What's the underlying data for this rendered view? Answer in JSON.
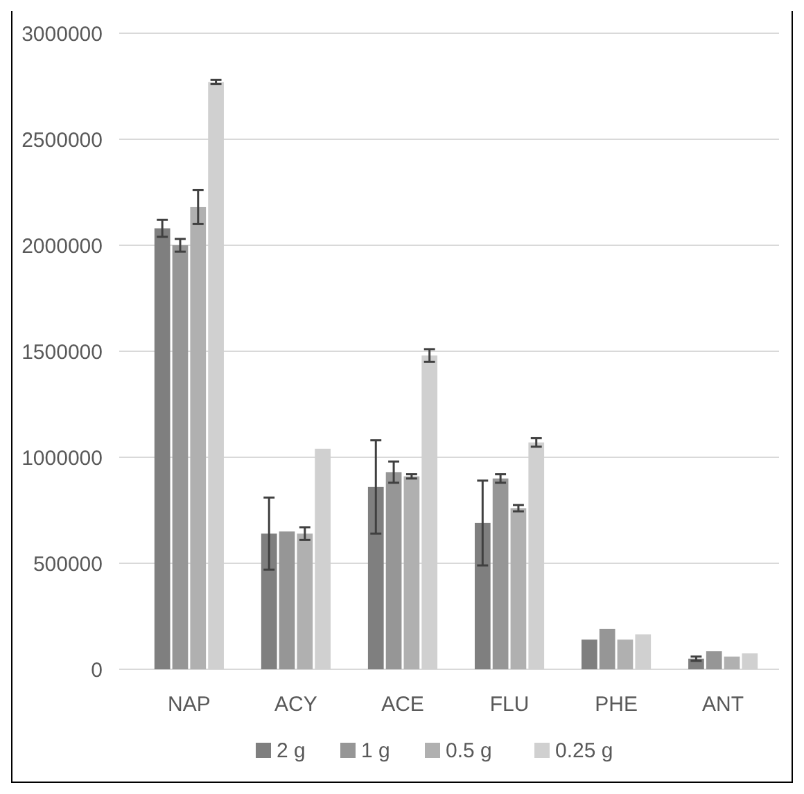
{
  "chart_data": {
    "type": "bar",
    "categories": [
      "NAP",
      "ACY",
      "ACE",
      "FLU",
      "PHE",
      "ANT"
    ],
    "series": [
      {
        "name": "2 g",
        "color": "#7f7f7f",
        "values": [
          2080000,
          640000,
          860000,
          690000,
          140000,
          50000
        ],
        "errors": [
          40000,
          170000,
          220000,
          200000,
          null,
          10000
        ]
      },
      {
        "name": "1 g",
        "color": "#969696",
        "values": [
          2000000,
          650000,
          930000,
          900000,
          190000,
          85000
        ],
        "errors": [
          30000,
          null,
          50000,
          20000,
          null,
          null
        ]
      },
      {
        "name": "0.5 g",
        "color": "#b0b0b0",
        "values": [
          2180000,
          640000,
          910000,
          760000,
          140000,
          60000
        ],
        "errors": [
          80000,
          30000,
          10000,
          15000,
          null,
          null
        ]
      },
      {
        "name": "0.25 g",
        "color": "#d0d0d0",
        "values": [
          2770000,
          1040000,
          1480000,
          1070000,
          165000,
          75000
        ],
        "errors": [
          10000,
          null,
          30000,
          20000,
          null,
          null
        ]
      }
    ],
    "ylim": [
      0,
      3000000
    ],
    "yticks": [
      0,
      500000,
      1000000,
      1500000,
      2000000,
      2500000,
      3000000
    ],
    "grid": "y",
    "legend": "bottom"
  }
}
